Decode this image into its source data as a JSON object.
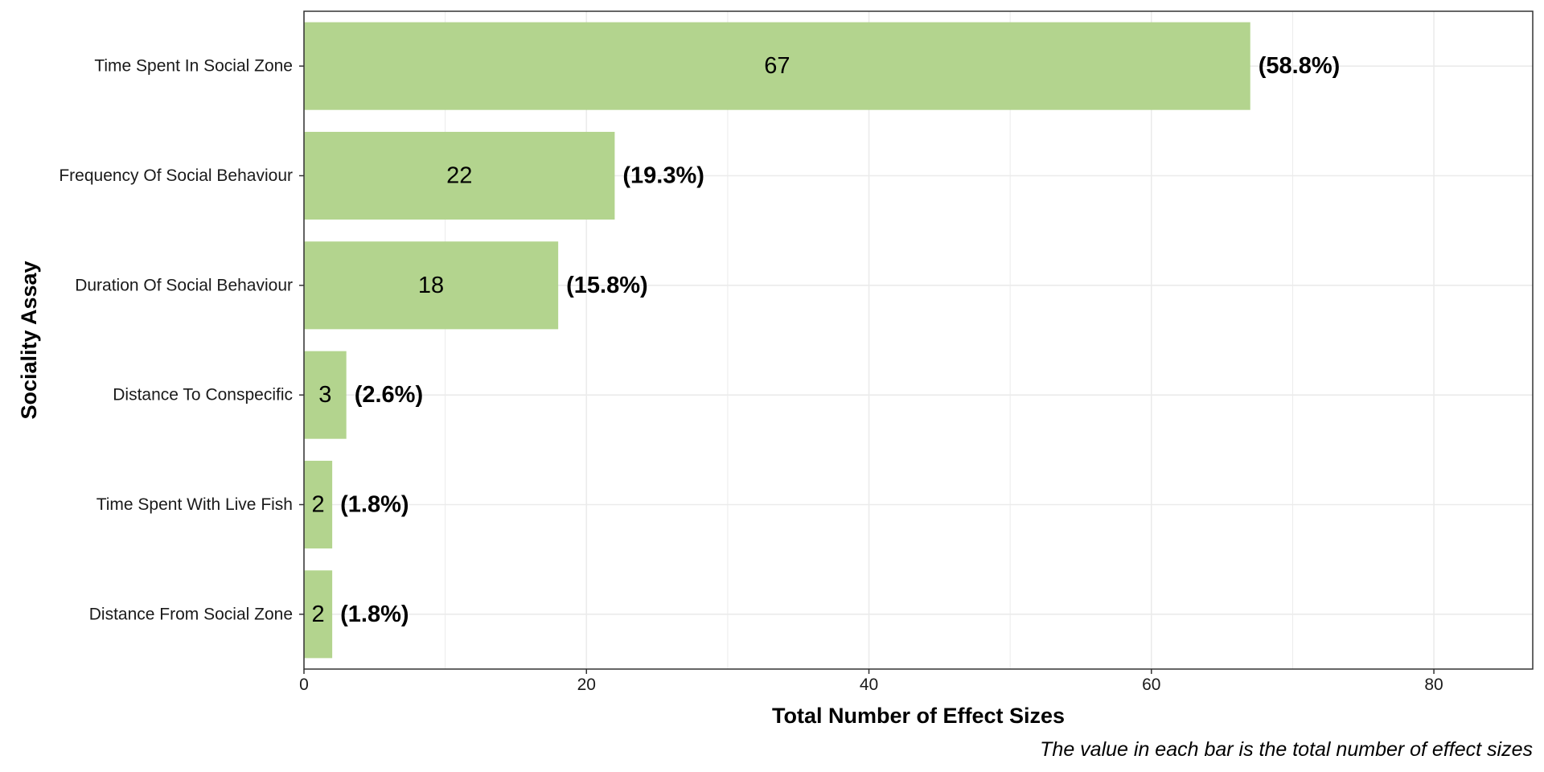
{
  "chart_data": {
    "type": "bar",
    "orientation": "horizontal",
    "categories": [
      "Time Spent In Social Zone",
      "Frequency Of Social Behaviour",
      "Duration Of Social Behaviour",
      "Distance To Conspecific",
      "Time Spent With Live Fish",
      "Distance From Social Zone"
    ],
    "values": [
      67,
      22,
      18,
      3,
      2,
      2
    ],
    "percent_labels": [
      "(58.8%)",
      "(19.3%)",
      "(15.8%)",
      "(2.6%)",
      "(1.8%)",
      "(1.8%)"
    ],
    "xlabel": "Total Number of Effect Sizes",
    "ylabel": "Sociality Assay",
    "caption": "The value in each bar is the total number of effect sizes",
    "xlim": [
      0,
      87
    ],
    "xticks": [
      0,
      20,
      40,
      60,
      80
    ],
    "grid": true,
    "bar_color": "#b3d48e",
    "gridline_color": "#ebebeb",
    "panel_border_color": "#333333"
  }
}
